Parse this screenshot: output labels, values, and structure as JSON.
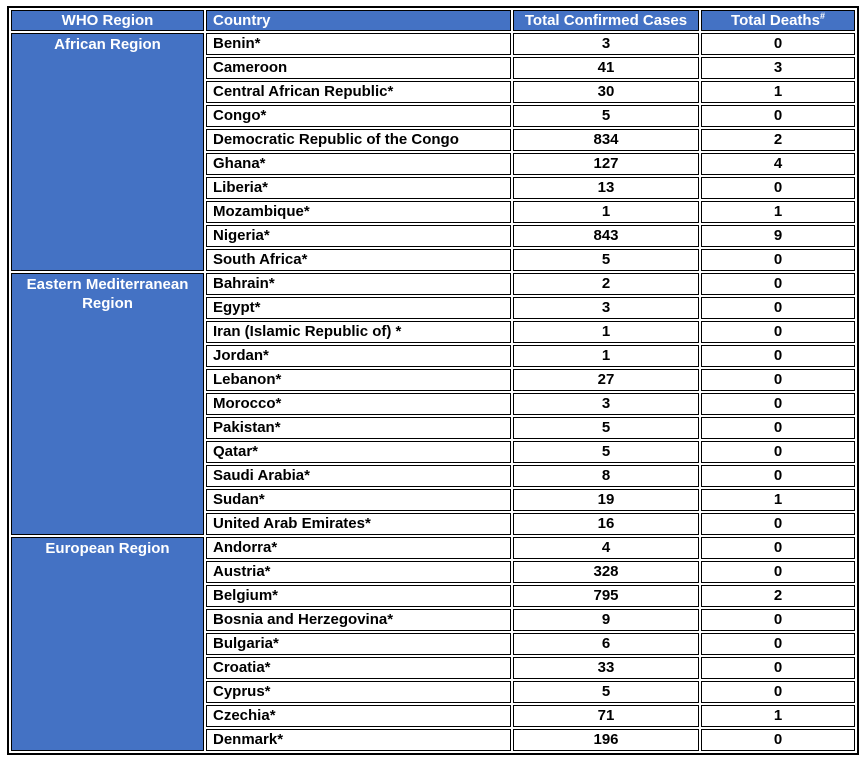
{
  "colors": {
    "header_blue": "#4472C4",
    "header_text": "#FFFFFF",
    "body_text": "#000000",
    "border": "#000000"
  },
  "table": {
    "columns": [
      {
        "label": "WHO Region"
      },
      {
        "label": "Country"
      },
      {
        "label": "Total Confirmed Cases"
      },
      {
        "label": "Total Deaths",
        "superscript": "#"
      }
    ],
    "regions": [
      {
        "name": "African Region",
        "rows": [
          {
            "country": "Benin*",
            "cases": "3",
            "deaths": "0"
          },
          {
            "country": "Cameroon",
            "cases": "41",
            "deaths": "3"
          },
          {
            "country": "Central African Republic*",
            "cases": "30",
            "deaths": "1"
          },
          {
            "country": "Congo*",
            "cases": "5",
            "deaths": "0"
          },
          {
            "country": "Democratic Republic of the Congo",
            "cases": "834",
            "deaths": "2"
          },
          {
            "country": "Ghana*",
            "cases": "127",
            "deaths": "4"
          },
          {
            "country": "Liberia*",
            "cases": "13",
            "deaths": "0"
          },
          {
            "country": "Mozambique*",
            "cases": "1",
            "deaths": "1"
          },
          {
            "country": "Nigeria*",
            "cases": "843",
            "deaths": "9"
          },
          {
            "country": "South Africa*",
            "cases": "5",
            "deaths": "0"
          }
        ]
      },
      {
        "name": "Eastern Mediterranean Region",
        "rows": [
          {
            "country": "Bahrain*",
            "cases": "2",
            "deaths": "0"
          },
          {
            "country": "Egypt*",
            "cases": "3",
            "deaths": "0"
          },
          {
            "country": "Iran (Islamic Republic of) *",
            "cases": "1",
            "deaths": "0"
          },
          {
            "country": "Jordan*",
            "cases": "1",
            "deaths": "0"
          },
          {
            "country": "Lebanon*",
            "cases": "27",
            "deaths": "0"
          },
          {
            "country": "Morocco*",
            "cases": "3",
            "deaths": "0"
          },
          {
            "country": "Pakistan*",
            "cases": "5",
            "deaths": "0"
          },
          {
            "country": "Qatar*",
            "cases": "5",
            "deaths": "0"
          },
          {
            "country": "Saudi Arabia*",
            "cases": "8",
            "deaths": "0"
          },
          {
            "country": "Sudan*",
            "cases": "19",
            "deaths": "1"
          },
          {
            "country": "United Arab Emirates*",
            "cases": "16",
            "deaths": "0"
          }
        ]
      },
      {
        "name": "European Region",
        "rows": [
          {
            "country": "Andorra*",
            "cases": "4",
            "deaths": "0"
          },
          {
            "country": "Austria*",
            "cases": "328",
            "deaths": "0"
          },
          {
            "country": "Belgium*",
            "cases": "795",
            "deaths": "2"
          },
          {
            "country": "Bosnia and Herzegovina*",
            "cases": "9",
            "deaths": "0"
          },
          {
            "country": "Bulgaria*",
            "cases": "6",
            "deaths": "0"
          },
          {
            "country": "Croatia*",
            "cases": "33",
            "deaths": "0"
          },
          {
            "country": "Cyprus*",
            "cases": "5",
            "deaths": "0"
          },
          {
            "country": "Czechia*",
            "cases": "71",
            "deaths": "1"
          },
          {
            "country": "Denmark*",
            "cases": "196",
            "deaths": "0"
          }
        ]
      }
    ]
  }
}
